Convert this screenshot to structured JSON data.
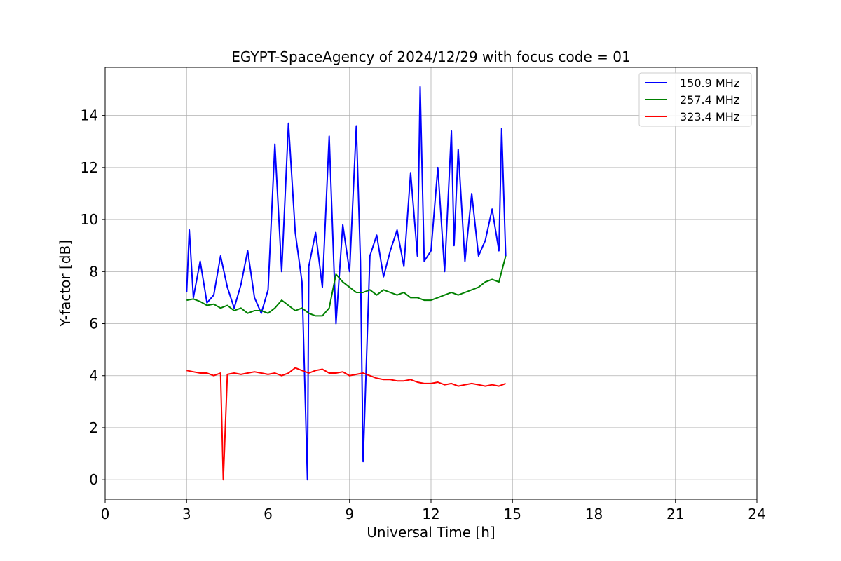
{
  "chart_data": {
    "type": "line",
    "title": "EGYPT-SpaceAgency of 2024/12/29 with focus code = 01",
    "xlabel": "Universal Time [h]",
    "ylabel": "Y-factor [dB]",
    "xlim": [
      0,
      24
    ],
    "ylim": [
      -0.75,
      15.85
    ],
    "xticks": [
      0,
      3,
      6,
      9,
      12,
      15,
      18,
      21,
      24
    ],
    "yticks": [
      0,
      2,
      4,
      6,
      8,
      10,
      12,
      14
    ],
    "grid": true,
    "legend_position": "top-right",
    "series": [
      {
        "name": "150.9 MHz",
        "color": "#0000ff",
        "x": [
          3.0,
          3.1,
          3.25,
          3.5,
          3.75,
          4.0,
          4.25,
          4.5,
          4.75,
          5.0,
          5.25,
          5.5,
          5.75,
          6.0,
          6.25,
          6.5,
          6.75,
          7.0,
          7.25,
          7.45,
          7.5,
          7.75,
          8.0,
          8.25,
          8.5,
          8.75,
          9.0,
          9.25,
          9.4,
          9.5,
          9.75,
          10.0,
          10.25,
          10.5,
          10.75,
          11.0,
          11.25,
          11.5,
          11.6,
          11.75,
          12.0,
          12.25,
          12.5,
          12.75,
          12.85,
          13.0,
          13.25,
          13.5,
          13.75,
          14.0,
          14.25,
          14.5,
          14.6,
          14.75
        ],
        "y": [
          7.2,
          9.6,
          7.0,
          8.4,
          6.8,
          7.1,
          8.6,
          7.4,
          6.6,
          7.5,
          8.8,
          7.0,
          6.4,
          7.3,
          12.9,
          8.0,
          13.7,
          9.5,
          7.6,
          0.0,
          8.2,
          9.5,
          7.4,
          13.2,
          6.0,
          9.8,
          8.0,
          13.6,
          8.4,
          0.7,
          8.6,
          9.4,
          7.8,
          8.8,
          9.6,
          8.2,
          11.8,
          8.6,
          15.1,
          8.4,
          8.8,
          12.0,
          8.0,
          13.4,
          9.0,
          12.7,
          8.4,
          11.0,
          8.6,
          9.2,
          10.4,
          8.8,
          13.5,
          8.6
        ]
      },
      {
        "name": "257.4 MHz",
        "color": "#008000",
        "x": [
          3.0,
          3.25,
          3.5,
          3.75,
          4.0,
          4.25,
          4.5,
          4.75,
          5.0,
          5.25,
          5.5,
          5.75,
          6.0,
          6.25,
          6.5,
          6.75,
          7.0,
          7.25,
          7.5,
          7.75,
          8.0,
          8.25,
          8.5,
          8.75,
          9.0,
          9.25,
          9.5,
          9.75,
          10.0,
          10.25,
          10.5,
          10.75,
          11.0,
          11.25,
          11.5,
          11.75,
          12.0,
          12.25,
          12.5,
          12.75,
          13.0,
          13.25,
          13.5,
          13.75,
          14.0,
          14.25,
          14.5,
          14.75
        ],
        "y": [
          6.9,
          6.95,
          6.85,
          6.7,
          6.75,
          6.6,
          6.7,
          6.5,
          6.6,
          6.4,
          6.5,
          6.5,
          6.4,
          6.6,
          6.9,
          6.7,
          6.5,
          6.6,
          6.4,
          6.3,
          6.3,
          6.6,
          7.9,
          7.6,
          7.4,
          7.2,
          7.2,
          7.3,
          7.1,
          7.3,
          7.2,
          7.1,
          7.2,
          7.0,
          7.0,
          6.9,
          6.9,
          7.0,
          7.1,
          7.2,
          7.1,
          7.2,
          7.3,
          7.4,
          7.6,
          7.7,
          7.6,
          8.6
        ]
      },
      {
        "name": "323.4 MHz",
        "color": "#ff0000",
        "x": [
          3.0,
          3.25,
          3.5,
          3.75,
          4.0,
          4.25,
          4.35,
          4.5,
          4.75,
          5.0,
          5.25,
          5.5,
          5.75,
          6.0,
          6.25,
          6.5,
          6.75,
          7.0,
          7.25,
          7.5,
          7.75,
          8.0,
          8.25,
          8.5,
          8.75,
          9.0,
          9.25,
          9.5,
          9.75,
          10.0,
          10.25,
          10.5,
          10.75,
          11.0,
          11.25,
          11.5,
          11.75,
          12.0,
          12.25,
          12.5,
          12.75,
          13.0,
          13.25,
          13.5,
          13.75,
          14.0,
          14.25,
          14.5,
          14.75
        ],
        "y": [
          4.2,
          4.15,
          4.1,
          4.1,
          4.0,
          4.1,
          0.0,
          4.05,
          4.1,
          4.05,
          4.1,
          4.15,
          4.1,
          4.05,
          4.1,
          4.0,
          4.1,
          4.3,
          4.2,
          4.1,
          4.2,
          4.25,
          4.1,
          4.1,
          4.15,
          4.0,
          4.05,
          4.1,
          4.0,
          3.9,
          3.85,
          3.85,
          3.8,
          3.8,
          3.85,
          3.75,
          3.7,
          3.7,
          3.75,
          3.65,
          3.7,
          3.6,
          3.65,
          3.7,
          3.65,
          3.6,
          3.65,
          3.6,
          3.7
        ]
      }
    ]
  }
}
